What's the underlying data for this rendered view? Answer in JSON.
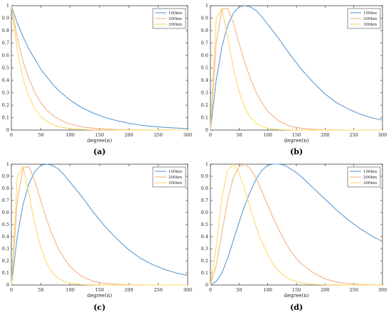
{
  "chart_data": [
    {
      "type": "line",
      "caption": "(a)",
      "xlabel": "degree(n)",
      "ylabel": "",
      "xlim": [
        0,
        300
      ],
      "ylim": [
        0,
        1
      ],
      "xticks": [
        0,
        50,
        100,
        150,
        200,
        250,
        300
      ],
      "yticks": [
        0,
        0.1,
        0.2,
        0.3,
        0.4,
        0.5,
        0.6,
        0.7,
        0.8,
        0.9,
        1
      ],
      "legend_position": "top-right",
      "x": [
        0,
        10,
        20,
        30,
        40,
        50,
        60,
        70,
        80,
        90,
        100,
        120,
        140,
        160,
        180,
        200,
        220,
        240,
        260,
        280,
        300
      ],
      "series": [
        {
          "name": "100km",
          "color": "#5b9bd5",
          "values": [
            1.0,
            0.86,
            0.75,
            0.65,
            0.57,
            0.49,
            0.43,
            0.37,
            0.32,
            0.28,
            0.24,
            0.18,
            0.135,
            0.1,
            0.075,
            0.055,
            0.04,
            0.03,
            0.022,
            0.016,
            0.012
          ]
        },
        {
          "name": "200km",
          "color": "#f4b183",
          "values": [
            1.0,
            0.74,
            0.55,
            0.41,
            0.3,
            0.22,
            0.16,
            0.12,
            0.09,
            0.065,
            0.048,
            0.026,
            0.014,
            0.008,
            0.004,
            0.002,
            0.001,
            0.0005,
            0.0003,
            0.0001,
            0.0
          ]
        },
        {
          "name": "300km",
          "color": "#ffd966",
          "values": [
            1.0,
            0.64,
            0.41,
            0.27,
            0.17,
            0.11,
            0.07,
            0.045,
            0.029,
            0.019,
            0.012,
            0.005,
            0.002,
            0.001,
            0.0,
            0.0,
            0.0,
            0.0,
            0.0,
            0.0,
            0.0
          ]
        }
      ]
    },
    {
      "type": "line",
      "caption": "(b)",
      "xlabel": "degree(n)",
      "ylabel": "",
      "xlim": [
        0,
        300
      ],
      "ylim": [
        0,
        1
      ],
      "xticks": [
        0,
        50,
        100,
        150,
        200,
        250,
        300
      ],
      "yticks": [
        0,
        0.1,
        0.2,
        0.3,
        0.4,
        0.5,
        0.6,
        0.7,
        0.8,
        0.9,
        1
      ],
      "legend_position": "top-right",
      "x": [
        0,
        10,
        20,
        30,
        40,
        50,
        60,
        70,
        80,
        90,
        100,
        120,
        140,
        160,
        180,
        200,
        220,
        240,
        260,
        280,
        300
      ],
      "series": [
        {
          "name": "100km",
          "color": "#5b9bd5",
          "values": [
            0.0,
            0.4,
            0.67,
            0.84,
            0.94,
            0.99,
            1.0,
            0.99,
            0.96,
            0.91,
            0.85,
            0.73,
            0.6,
            0.48,
            0.38,
            0.29,
            0.22,
            0.17,
            0.13,
            0.1,
            0.08
          ]
        },
        {
          "name": "200km",
          "color": "#f4b183",
          "values": [
            0.0,
            0.7,
            0.97,
            0.98,
            0.86,
            0.7,
            0.54,
            0.41,
            0.3,
            0.22,
            0.15,
            0.07,
            0.03,
            0.013,
            0.005,
            0.002,
            0.001,
            0.0,
            0.0,
            0.0,
            0.0
          ]
        },
        {
          "name": "300km",
          "color": "#ffd966",
          "values": [
            0.0,
            0.9,
            0.98,
            0.75,
            0.5,
            0.31,
            0.18,
            0.1,
            0.055,
            0.03,
            0.015,
            0.004,
            0.001,
            0.0,
            0.0,
            0.0,
            0.0,
            0.0,
            0.0,
            0.0,
            0.0
          ]
        }
      ]
    },
    {
      "type": "line",
      "caption": "(c)",
      "xlabel": "degree(n)",
      "ylabel": "",
      "xlim": [
        0,
        300
      ],
      "ylim": [
        0,
        1
      ],
      "xticks": [
        0,
        50,
        100,
        150,
        200,
        250,
        300
      ],
      "yticks": [
        0,
        0.1,
        0.2,
        0.3,
        0.4,
        0.5,
        0.6,
        0.7,
        0.8,
        0.9,
        1
      ],
      "legend_position": "top-right",
      "x": [
        0,
        10,
        20,
        30,
        40,
        50,
        60,
        70,
        80,
        90,
        100,
        120,
        140,
        160,
        180,
        200,
        220,
        240,
        260,
        280,
        300
      ],
      "series": [
        {
          "name": "100km",
          "color": "#5b9bd5",
          "values": [
            0.0,
            0.4,
            0.67,
            0.84,
            0.94,
            0.99,
            1.0,
            0.99,
            0.96,
            0.91,
            0.85,
            0.73,
            0.6,
            0.48,
            0.38,
            0.29,
            0.22,
            0.17,
            0.13,
            0.1,
            0.08
          ]
        },
        {
          "name": "200km",
          "color": "#f4b183",
          "values": [
            0.0,
            0.7,
            0.97,
            0.98,
            0.86,
            0.7,
            0.54,
            0.41,
            0.3,
            0.22,
            0.15,
            0.07,
            0.03,
            0.013,
            0.005,
            0.002,
            0.001,
            0.0,
            0.0,
            0.0,
            0.0
          ]
        },
        {
          "name": "300km",
          "color": "#ffd966",
          "values": [
            0.0,
            0.9,
            0.98,
            0.75,
            0.5,
            0.31,
            0.18,
            0.1,
            0.055,
            0.03,
            0.015,
            0.004,
            0.001,
            0.0,
            0.0,
            0.0,
            0.0,
            0.0,
            0.0,
            0.0,
            0.0
          ]
        }
      ]
    },
    {
      "type": "line",
      "caption": "(d)",
      "xlabel": "degree(n)",
      "ylabel": "",
      "xlim": [
        0,
        300
      ],
      "ylim": [
        0,
        1
      ],
      "xticks": [
        0,
        50,
        100,
        150,
        200,
        250,
        300
      ],
      "yticks": [
        0,
        0.1,
        0.2,
        0.3,
        0.4,
        0.5,
        0.6,
        0.7,
        0.8,
        0.9,
        1
      ],
      "legend_position": "top-right",
      "x": [
        0,
        10,
        20,
        30,
        40,
        50,
        60,
        70,
        80,
        90,
        100,
        110,
        120,
        130,
        140,
        150,
        160,
        180,
        200,
        220,
        240,
        260,
        280,
        300
      ],
      "series": [
        {
          "name": "100km",
          "color": "#5b9bd5",
          "values": [
            0.0,
            0.03,
            0.1,
            0.22,
            0.37,
            0.52,
            0.66,
            0.78,
            0.88,
            0.95,
            0.99,
            1.0,
            1.0,
            0.99,
            0.96,
            0.93,
            0.89,
            0.8,
            0.71,
            0.62,
            0.54,
            0.47,
            0.41,
            0.36
          ]
        },
        {
          "name": "200km",
          "color": "#f4b183",
          "values": [
            0.0,
            0.16,
            0.43,
            0.7,
            0.89,
            0.98,
            1.0,
            0.96,
            0.88,
            0.77,
            0.66,
            0.55,
            0.45,
            0.36,
            0.28,
            0.22,
            0.17,
            0.1,
            0.05,
            0.025,
            0.012,
            0.005,
            0.002,
            0.001
          ]
        },
        {
          "name": "300km",
          "color": "#ffd966",
          "values": [
            0.0,
            0.32,
            0.72,
            0.95,
            1.0,
            0.93,
            0.79,
            0.63,
            0.48,
            0.35,
            0.25,
            0.17,
            0.11,
            0.07,
            0.045,
            0.028,
            0.017,
            0.006,
            0.002,
            0.001,
            0.0,
            0.0,
            0.0,
            0.0
          ]
        }
      ]
    }
  ]
}
